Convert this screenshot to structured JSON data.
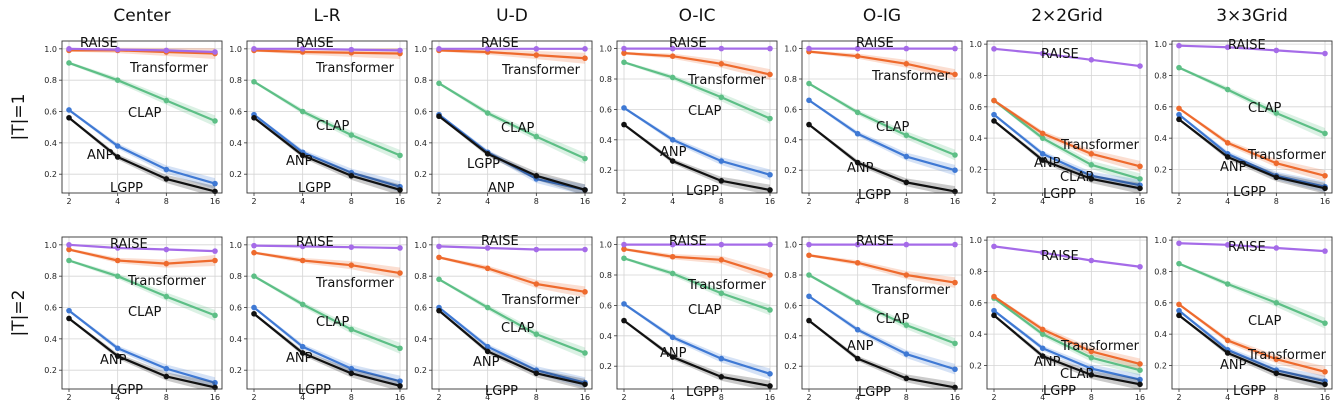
{
  "figure": {
    "row_labels": [
      "|T|=1",
      "|T|=2"
    ],
    "column_titles": [
      "Center",
      "L-R",
      "U-D",
      "O-IC",
      "O-IG",
      "2×2Grid",
      "3×3Grid"
    ],
    "colors": {
      "RAISE": "#a56be8",
      "Transformer": "#ee6a2d",
      "CLAP": "#5dbf86",
      "ANP": "#3f79d4",
      "LGPP": "#111111"
    }
  },
  "chart_data": [
    {
      "type": "line",
      "row": "|T|=1",
      "title": "Center",
      "x": [
        2,
        4,
        8,
        16
      ],
      "x_ticks": [
        "2",
        "4",
        "8",
        "16"
      ],
      "ylim": [
        0.08,
        1.05
      ],
      "y_ticks": [
        "0.2",
        "0.4",
        "0.6",
        "0.8",
        "1.0"
      ],
      "grid": true,
      "series": [
        {
          "name": "RAISE",
          "values": [
            1.0,
            0.995,
            0.99,
            0.98
          ]
        },
        {
          "name": "Transformer",
          "values": [
            0.99,
            0.99,
            0.98,
            0.97
          ]
        },
        {
          "name": "CLAP",
          "values": [
            0.91,
            0.8,
            0.67,
            0.54
          ]
        },
        {
          "name": "ANP",
          "values": [
            0.61,
            0.38,
            0.23,
            0.14
          ]
        },
        {
          "name": "LGPP",
          "values": [
            0.56,
            0.31,
            0.17,
            0.09
          ]
        }
      ]
    },
    {
      "type": "line",
      "row": "|T|=1",
      "title": "L-R",
      "x": [
        2,
        4,
        8,
        16
      ],
      "x_ticks": [
        "2",
        "4",
        "8",
        "16"
      ],
      "ylim": [
        0.08,
        1.05
      ],
      "y_ticks": [
        "0.2",
        "0.4",
        "0.6",
        "0.8",
        "1.0"
      ],
      "grid": true,
      "series": [
        {
          "name": "RAISE",
          "values": [
            1.0,
            1.0,
            0.995,
            0.99
          ]
        },
        {
          "name": "Transformer",
          "values": [
            0.99,
            0.98,
            0.975,
            0.97
          ]
        },
        {
          "name": "CLAP",
          "values": [
            0.79,
            0.6,
            0.45,
            0.32
          ]
        },
        {
          "name": "ANP",
          "values": [
            0.58,
            0.34,
            0.21,
            0.12
          ]
        },
        {
          "name": "LGPP",
          "values": [
            0.56,
            0.32,
            0.19,
            0.1
          ]
        }
      ]
    },
    {
      "type": "line",
      "row": "|T|=1",
      "title": "U-D",
      "x": [
        2,
        4,
        8,
        16
      ],
      "x_ticks": [
        "2",
        "4",
        "8",
        "16"
      ],
      "ylim": [
        0.08,
        1.05
      ],
      "y_ticks": [
        "0.2",
        "0.4",
        "0.6",
        "0.8",
        "1.0"
      ],
      "grid": true,
      "series": [
        {
          "name": "RAISE",
          "values": [
            1.0,
            1.0,
            1.0,
            1.0
          ]
        },
        {
          "name": "Transformer",
          "values": [
            0.99,
            0.98,
            0.96,
            0.94
          ]
        },
        {
          "name": "CLAP",
          "values": [
            0.78,
            0.59,
            0.44,
            0.3
          ]
        },
        {
          "name": "ANP",
          "values": [
            0.58,
            0.34,
            0.17,
            0.1
          ]
        },
        {
          "name": "LGPP",
          "values": [
            0.57,
            0.33,
            0.19,
            0.1
          ]
        }
      ]
    },
    {
      "type": "line",
      "row": "|T|=1",
      "title": "O-IC",
      "x": [
        2,
        4,
        8,
        16
      ],
      "x_ticks": [
        "2",
        "4",
        "8",
        "16"
      ],
      "ylim": [
        0.05,
        1.05
      ],
      "y_ticks": [
        "0.2",
        "0.4",
        "0.6",
        "0.8",
        "1.0"
      ],
      "grid": true,
      "series": [
        {
          "name": "RAISE",
          "values": [
            1.0,
            1.0,
            1.0,
            1.0
          ]
        },
        {
          "name": "Transformer",
          "values": [
            0.97,
            0.95,
            0.9,
            0.83
          ]
        },
        {
          "name": "CLAP",
          "values": [
            0.91,
            0.81,
            0.68,
            0.54
          ]
        },
        {
          "name": "ANP",
          "values": [
            0.61,
            0.4,
            0.26,
            0.17
          ]
        },
        {
          "name": "LGPP",
          "values": [
            0.5,
            0.26,
            0.13,
            0.07
          ]
        }
      ]
    },
    {
      "type": "line",
      "row": "|T|=1",
      "title": "O-IG",
      "x": [
        2,
        4,
        8,
        16
      ],
      "x_ticks": [
        "2",
        "4",
        "8",
        "16"
      ],
      "ylim": [
        0.05,
        1.05
      ],
      "y_ticks": [
        "0.2",
        "0.4",
        "0.6",
        "0.8",
        "1.0"
      ],
      "grid": true,
      "series": [
        {
          "name": "RAISE",
          "values": [
            1.0,
            1.0,
            1.0,
            1.0
          ]
        },
        {
          "name": "Transformer",
          "values": [
            0.98,
            0.95,
            0.9,
            0.83
          ]
        },
        {
          "name": "CLAP",
          "values": [
            0.77,
            0.58,
            0.43,
            0.3
          ]
        },
        {
          "name": "ANP",
          "values": [
            0.66,
            0.44,
            0.29,
            0.2
          ]
        },
        {
          "name": "LGPP",
          "values": [
            0.5,
            0.25,
            0.12,
            0.06
          ]
        }
      ]
    },
    {
      "type": "line",
      "row": "|T|=1",
      "title": "2×2Grid",
      "x": [
        2,
        4,
        8,
        16
      ],
      "x_ticks": [
        "2",
        "4",
        "8",
        "16"
      ],
      "ylim": [
        0.05,
        1.02
      ],
      "y_ticks": [
        "0.2",
        "0.4",
        "0.6",
        "0.8",
        "1.0"
      ],
      "grid": true,
      "series": [
        {
          "name": "RAISE",
          "values": [
            0.97,
            0.94,
            0.9,
            0.86
          ]
        },
        {
          "name": "Transformer",
          "values": [
            0.64,
            0.43,
            0.3,
            0.22
          ]
        },
        {
          "name": "CLAP",
          "values": [
            0.64,
            0.4,
            0.23,
            0.14
          ]
        },
        {
          "name": "ANP",
          "values": [
            0.55,
            0.3,
            0.16,
            0.1
          ]
        },
        {
          "name": "LGPP",
          "values": [
            0.51,
            0.26,
            0.14,
            0.08
          ]
        }
      ]
    },
    {
      "type": "line",
      "row": "|T|=1",
      "title": "3×3Grid",
      "x": [
        2,
        4,
        8,
        16
      ],
      "x_ticks": [
        "2",
        "4",
        "8",
        "16"
      ],
      "ylim": [
        0.05,
        1.02
      ],
      "y_ticks": [
        "0.2",
        "0.4",
        "0.6",
        "0.8",
        "1.0"
      ],
      "grid": true,
      "series": [
        {
          "name": "RAISE",
          "values": [
            0.99,
            0.98,
            0.96,
            0.94
          ]
        },
        {
          "name": "Transformer",
          "values": [
            0.59,
            0.37,
            0.24,
            0.16
          ]
        },
        {
          "name": "CLAP",
          "values": [
            0.85,
            0.71,
            0.56,
            0.43
          ]
        },
        {
          "name": "ANP",
          "values": [
            0.55,
            0.3,
            0.16,
            0.09
          ]
        },
        {
          "name": "LGPP",
          "values": [
            0.52,
            0.28,
            0.15,
            0.08
          ]
        }
      ]
    },
    {
      "type": "line",
      "row": "|T|=2",
      "title": "Center",
      "x": [
        2,
        4,
        8,
        16
      ],
      "x_ticks": [
        "2",
        "4",
        "8",
        "16"
      ],
      "ylim": [
        0.08,
        1.05
      ],
      "y_ticks": [
        "0.2",
        "0.4",
        "0.6",
        "0.8",
        "1.0"
      ],
      "grid": true,
      "series": [
        {
          "name": "RAISE",
          "values": [
            1.0,
            0.98,
            0.97,
            0.96
          ]
        },
        {
          "name": "Transformer",
          "values": [
            0.97,
            0.9,
            0.88,
            0.9
          ]
        },
        {
          "name": "CLAP",
          "values": [
            0.9,
            0.8,
            0.67,
            0.55
          ]
        },
        {
          "name": "ANP",
          "values": [
            0.58,
            0.34,
            0.21,
            0.12
          ]
        },
        {
          "name": "LGPP",
          "values": [
            0.53,
            0.29,
            0.16,
            0.09
          ]
        }
      ]
    },
    {
      "type": "line",
      "row": "|T|=2",
      "title": "L-R",
      "x": [
        2,
        4,
        8,
        16
      ],
      "x_ticks": [
        "2",
        "4",
        "8",
        "16"
      ],
      "ylim": [
        0.08,
        1.05
      ],
      "y_ticks": [
        "0.2",
        "0.4",
        "0.6",
        "0.8",
        "1.0"
      ],
      "grid": true,
      "series": [
        {
          "name": "RAISE",
          "values": [
            0.995,
            0.99,
            0.985,
            0.98
          ]
        },
        {
          "name": "Transformer",
          "values": [
            0.95,
            0.9,
            0.87,
            0.82
          ]
        },
        {
          "name": "CLAP",
          "values": [
            0.8,
            0.62,
            0.46,
            0.34
          ]
        },
        {
          "name": "ANP",
          "values": [
            0.6,
            0.35,
            0.21,
            0.13
          ]
        },
        {
          "name": "LGPP",
          "values": [
            0.56,
            0.31,
            0.18,
            0.1
          ]
        }
      ]
    },
    {
      "type": "line",
      "row": "|T|=2",
      "title": "U-D",
      "x": [
        2,
        4,
        8,
        16
      ],
      "x_ticks": [
        "2",
        "4",
        "8",
        "16"
      ],
      "ylim": [
        0.08,
        1.05
      ],
      "y_ticks": [
        "0.2",
        "0.4",
        "0.6",
        "0.8",
        "1.0"
      ],
      "grid": true,
      "series": [
        {
          "name": "RAISE",
          "values": [
            0.99,
            0.98,
            0.97,
            0.97
          ]
        },
        {
          "name": "Transformer",
          "values": [
            0.92,
            0.85,
            0.75,
            0.7
          ]
        },
        {
          "name": "CLAP",
          "values": [
            0.78,
            0.6,
            0.43,
            0.31
          ]
        },
        {
          "name": "ANP",
          "values": [
            0.6,
            0.35,
            0.2,
            0.12
          ]
        },
        {
          "name": "LGPP",
          "values": [
            0.58,
            0.32,
            0.18,
            0.11
          ]
        }
      ]
    },
    {
      "type": "line",
      "row": "|T|=2",
      "title": "O-IC",
      "x": [
        2,
        4,
        8,
        16
      ],
      "x_ticks": [
        "2",
        "4",
        "8",
        "16"
      ],
      "ylim": [
        0.05,
        1.05
      ],
      "y_ticks": [
        "0.2",
        "0.4",
        "0.6",
        "0.8",
        "1.0"
      ],
      "grid": true,
      "series": [
        {
          "name": "RAISE",
          "values": [
            1.0,
            1.0,
            1.0,
            1.0
          ]
        },
        {
          "name": "Transformer",
          "values": [
            0.97,
            0.92,
            0.9,
            0.8
          ]
        },
        {
          "name": "CLAP",
          "values": [
            0.91,
            0.81,
            0.68,
            0.57
          ]
        },
        {
          "name": "ANP",
          "values": [
            0.61,
            0.39,
            0.25,
            0.15
          ]
        },
        {
          "name": "LGPP",
          "values": [
            0.5,
            0.26,
            0.13,
            0.07
          ]
        }
      ]
    },
    {
      "type": "line",
      "row": "|T|=2",
      "title": "O-IG",
      "x": [
        2,
        4,
        8,
        16
      ],
      "x_ticks": [
        "2",
        "4",
        "8",
        "16"
      ],
      "ylim": [
        0.05,
        1.05
      ],
      "y_ticks": [
        "0.2",
        "0.4",
        "0.6",
        "0.8",
        "1.0"
      ],
      "grid": true,
      "series": [
        {
          "name": "RAISE",
          "values": [
            1.0,
            1.0,
            1.0,
            1.0
          ]
        },
        {
          "name": "Transformer",
          "values": [
            0.93,
            0.88,
            0.8,
            0.75
          ]
        },
        {
          "name": "CLAP",
          "values": [
            0.8,
            0.62,
            0.47,
            0.35
          ]
        },
        {
          "name": "ANP",
          "values": [
            0.66,
            0.44,
            0.28,
            0.18
          ]
        },
        {
          "name": "LGPP",
          "values": [
            0.5,
            0.25,
            0.12,
            0.06
          ]
        }
      ]
    },
    {
      "type": "line",
      "row": "|T|=2",
      "title": "2×2Grid",
      "x": [
        2,
        4,
        8,
        16
      ],
      "x_ticks": [
        "2",
        "4",
        "8",
        "16"
      ],
      "ylim": [
        0.05,
        1.02
      ],
      "y_ticks": [
        "0.2",
        "0.4",
        "0.6",
        "0.8",
        "1.0"
      ],
      "grid": true,
      "series": [
        {
          "name": "RAISE",
          "values": [
            0.96,
            0.92,
            0.87,
            0.83
          ]
        },
        {
          "name": "Transformer",
          "values": [
            0.64,
            0.43,
            0.29,
            0.21
          ]
        },
        {
          "name": "CLAP",
          "values": [
            0.63,
            0.4,
            0.25,
            0.17
          ]
        },
        {
          "name": "ANP",
          "values": [
            0.55,
            0.31,
            0.18,
            0.11
          ]
        },
        {
          "name": "LGPP",
          "values": [
            0.52,
            0.26,
            0.14,
            0.08
          ]
        }
      ]
    },
    {
      "type": "line",
      "row": "|T|=2",
      "title": "3×3Grid",
      "x": [
        2,
        4,
        8,
        16
      ],
      "x_ticks": [
        "2",
        "4",
        "8",
        "16"
      ],
      "ylim": [
        0.05,
        1.02
      ],
      "y_ticks": [
        "0.2",
        "0.4",
        "0.6",
        "0.8",
        "1.0"
      ],
      "grid": true,
      "series": [
        {
          "name": "RAISE",
          "values": [
            0.98,
            0.97,
            0.95,
            0.93
          ]
        },
        {
          "name": "Transformer",
          "values": [
            0.59,
            0.36,
            0.24,
            0.16
          ]
        },
        {
          "name": "CLAP",
          "values": [
            0.85,
            0.72,
            0.6,
            0.47
          ]
        },
        {
          "name": "ANP",
          "values": [
            0.55,
            0.3,
            0.17,
            0.1
          ]
        },
        {
          "name": "LGPP",
          "values": [
            0.52,
            0.28,
            0.15,
            0.08
          ]
        }
      ]
    }
  ]
}
